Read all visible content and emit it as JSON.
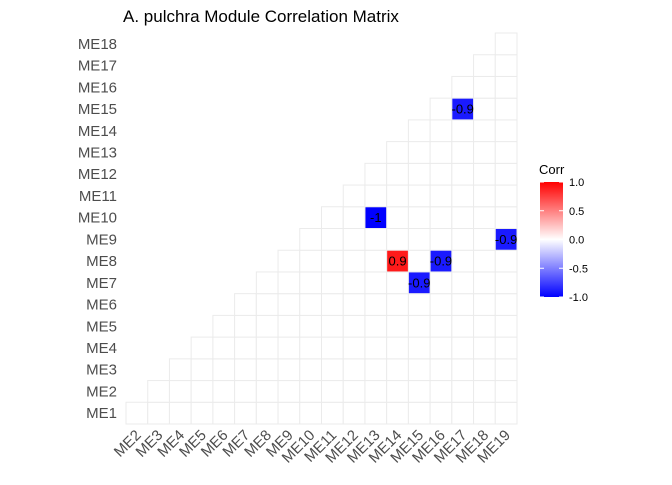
{
  "chart_data": {
    "type": "heatmap",
    "title": "A. pulchra Module Correlation Matrix",
    "x_categories": [
      "ME2",
      "ME3",
      "ME4",
      "ME5",
      "ME6",
      "ME7",
      "ME8",
      "ME9",
      "ME10",
      "ME11",
      "ME12",
      "ME13",
      "ME14",
      "ME15",
      "ME16",
      "ME17",
      "ME18",
      "ME19"
    ],
    "y_categories": [
      "ME1",
      "ME2",
      "ME3",
      "ME4",
      "ME5",
      "ME6",
      "ME7",
      "ME8",
      "ME9",
      "ME10",
      "ME11",
      "ME12",
      "ME13",
      "ME14",
      "ME15",
      "ME16",
      "ME17",
      "ME18"
    ],
    "triangle": "lower",
    "cells": [
      {
        "x": "ME13",
        "y": "ME10",
        "value": -1.0,
        "label": "-1"
      },
      {
        "x": "ME14",
        "y": "ME8",
        "value": 0.9,
        "label": "0.9"
      },
      {
        "x": "ME15",
        "y": "ME7",
        "value": -0.9,
        "label": "-0.9"
      },
      {
        "x": "ME16",
        "y": "ME8",
        "value": -0.9,
        "label": "-0.9"
      },
      {
        "x": "ME17",
        "y": "ME15",
        "value": -0.9,
        "label": "-0.9"
      },
      {
        "x": "ME19",
        "y": "ME9",
        "value": -0.9,
        "label": "-0.9"
      }
    ],
    "legend": {
      "title": "Corr",
      "ticks": [
        "1.0",
        "0.5",
        "0.0",
        "-0.5",
        "-1.0"
      ],
      "tick_values": [
        1.0,
        0.5,
        0.0,
        -0.5,
        -1.0
      ],
      "range": [
        -1.0,
        1.0
      ],
      "colors": {
        "low": "#0000FF",
        "mid": "#FFFFFF",
        "high": "#FF0000"
      },
      "placement": "right"
    },
    "grid": true,
    "colors": {
      "grid": "#EBEBEB",
      "tick_label": "#4D4D4D",
      "cell_label": "#000000"
    }
  }
}
